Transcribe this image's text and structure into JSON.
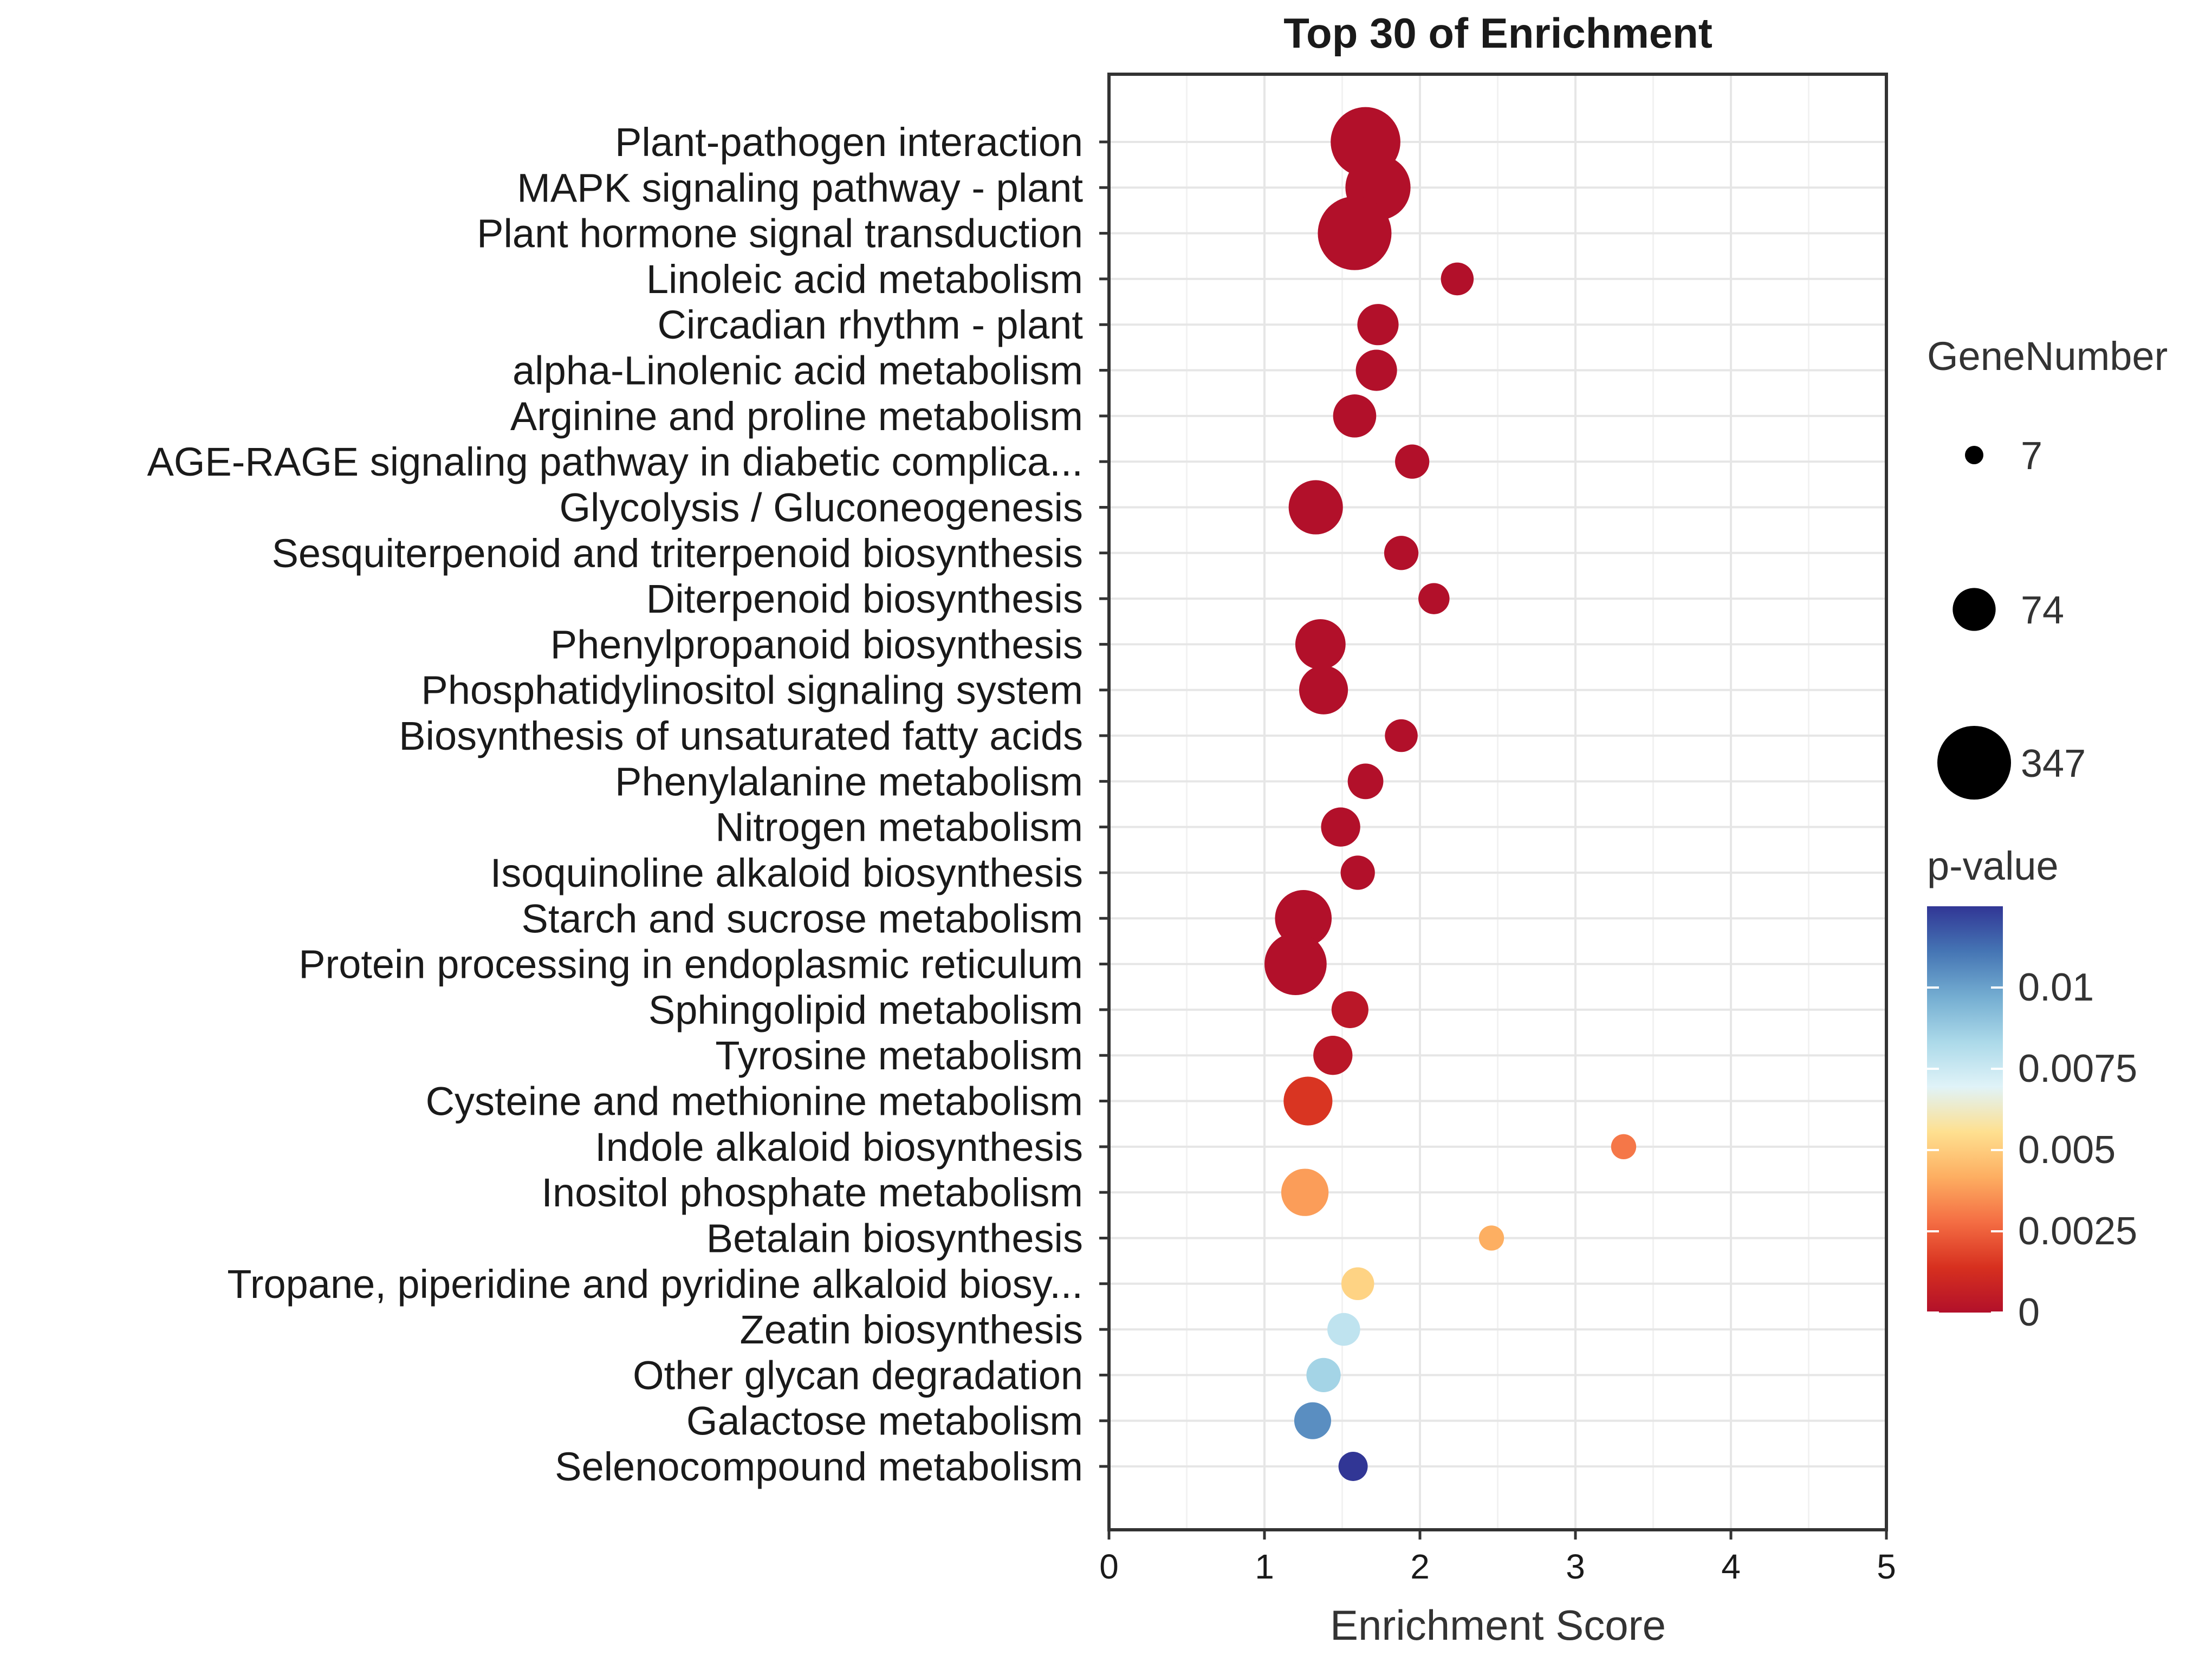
{
  "chart_data": {
    "type": "scatter",
    "title": "Top 30 of  Enrichment",
    "xlabel": "Enrichment Score",
    "ylabel": "",
    "xlim": [
      0,
      5
    ],
    "x_ticks": [
      "0",
      "1",
      "2",
      "3",
      "4",
      "5"
    ],
    "grid": true,
    "legend_position": "right",
    "size_legend": {
      "title": "GeneNumber",
      "entries": [
        {
          "label": "7",
          "value": 7
        },
        {
          "label": "74",
          "value": 74
        },
        {
          "label": "347",
          "value": 347
        }
      ]
    },
    "color_legend": {
      "title": "p-value",
      "range": [
        0,
        0.0125
      ],
      "ticks": [
        {
          "label": "0.01",
          "value": 0.01
        },
        {
          "label": "0.0075",
          "value": 0.0075
        },
        {
          "label": "0.005",
          "value": 0.005
        },
        {
          "label": "0.0025",
          "value": 0.0025
        },
        {
          "label": "0",
          "value": 0
        }
      ],
      "colors": [
        "#b2102a",
        "#d7301f",
        "#f46d43",
        "#fdae61",
        "#fee090",
        "#e0f3f8",
        "#abd9e9",
        "#74add1",
        "#4575b4",
        "#313695"
      ]
    },
    "points": [
      {
        "term": "Plant-pathogen interaction",
        "score": 1.65,
        "gene_number": 300,
        "p_value": 0.0
      },
      {
        "term": "MAPK signaling pathway - plant",
        "score": 1.73,
        "gene_number": 250,
        "p_value": 0.0
      },
      {
        "term": "Plant hormone signal transduction",
        "score": 1.58,
        "gene_number": 347,
        "p_value": 0.0
      },
      {
        "term": "Linoleic acid metabolism",
        "score": 2.24,
        "gene_number": 30,
        "p_value": 0.0
      },
      {
        "term": "Circadian rhythm - plant",
        "score": 1.73,
        "gene_number": 65,
        "p_value": 0.0
      },
      {
        "term": "alpha-Linolenic acid metabolism",
        "score": 1.72,
        "gene_number": 65,
        "p_value": 0.0
      },
      {
        "term": "Arginine and proline metabolism",
        "score": 1.58,
        "gene_number": 75,
        "p_value": 0.0
      },
      {
        "term": "AGE-RAGE signaling pathway in diabetic complica...",
        "score": 1.95,
        "gene_number": 35,
        "p_value": 0.0
      },
      {
        "term": "Glycolysis / Gluconeogenesis",
        "score": 1.33,
        "gene_number": 150,
        "p_value": 0.0
      },
      {
        "term": "Sesquiterpenoid and triterpenoid biosynthesis",
        "score": 1.88,
        "gene_number": 35,
        "p_value": 0.0
      },
      {
        "term": "Diterpenoid biosynthesis",
        "score": 2.09,
        "gene_number": 25,
        "p_value": 0.0
      },
      {
        "term": "Phenylpropanoid biosynthesis",
        "score": 1.36,
        "gene_number": 120,
        "p_value": 0.0
      },
      {
        "term": "Phosphatidylinositol signaling system",
        "score": 1.38,
        "gene_number": 110,
        "p_value": 0.0
      },
      {
        "term": "Biosynthesis of unsaturated fatty acids",
        "score": 1.88,
        "gene_number": 30,
        "p_value": 0.0
      },
      {
        "term": "Phenylalanine metabolism",
        "score": 1.65,
        "gene_number": 40,
        "p_value": 0.0
      },
      {
        "term": "Nitrogen metabolism",
        "score": 1.49,
        "gene_number": 55,
        "p_value": 0.0
      },
      {
        "term": "Isoquinoline alkaloid biosynthesis",
        "score": 1.6,
        "gene_number": 35,
        "p_value": 0.0
      },
      {
        "term": "Starch and sucrose metabolism",
        "score": 1.25,
        "gene_number": 170,
        "p_value": 0.0
      },
      {
        "term": "Protein processing in endoplasmic reticulum",
        "score": 1.2,
        "gene_number": 220,
        "p_value": 0.0
      },
      {
        "term": "Sphingolipid metabolism",
        "score": 1.55,
        "gene_number": 45,
        "p_value": 0.0003
      },
      {
        "term": "Tyrosine metabolism",
        "score": 1.44,
        "gene_number": 55,
        "p_value": 0.0003
      },
      {
        "term": "Cysteine and methionine metabolism",
        "score": 1.28,
        "gene_number": 110,
        "p_value": 0.0015
      },
      {
        "term": "Indole alkaloid biosynthesis",
        "score": 3.31,
        "gene_number": 12,
        "p_value": 0.003
      },
      {
        "term": "Inositol phosphate metabolism",
        "score": 1.26,
        "gene_number": 100,
        "p_value": 0.0038
      },
      {
        "term": "Betalain biosynthesis",
        "score": 2.46,
        "gene_number": 12,
        "p_value": 0.0042
      },
      {
        "term": "Tropane, piperidine and pyridine alkaloid biosy...",
        "score": 1.6,
        "gene_number": 30,
        "p_value": 0.0052
      },
      {
        "term": "Zeatin biosynthesis",
        "score": 1.51,
        "gene_number": 30,
        "p_value": 0.0078
      },
      {
        "term": "Other glycan degradation",
        "score": 1.38,
        "gene_number": 35,
        "p_value": 0.0085
      },
      {
        "term": "Galactose metabolism",
        "score": 1.31,
        "gene_number": 45,
        "p_value": 0.0105
      },
      {
        "term": "Selenocompound metabolism",
        "score": 1.57,
        "gene_number": 20,
        "p_value": 0.0125
      }
    ]
  }
}
